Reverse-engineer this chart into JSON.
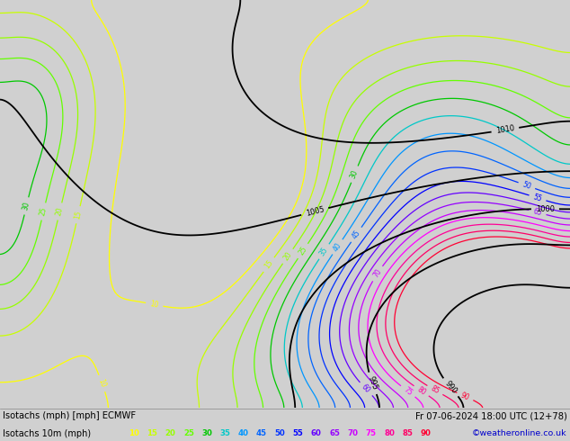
{
  "title_left": "Isotachs (mph) [mph] ECMWF",
  "title_right": "Fr 07-06-2024 18:00 UTC (12+78)",
  "subtitle_left": "Isotachs 10m (mph)",
  "subtitle_right": "©weatheronline.co.uk",
  "legend_values": [
    10,
    15,
    20,
    25,
    30,
    35,
    40,
    45,
    50,
    55,
    60,
    65,
    70,
    75,
    80,
    85,
    90
  ],
  "legend_colors": [
    "#ffff00",
    "#c8ff00",
    "#96ff00",
    "#64ff00",
    "#00c800",
    "#00c8c8",
    "#0096ff",
    "#0064ff",
    "#0032ff",
    "#0000ff",
    "#6400ff",
    "#9600ff",
    "#c800ff",
    "#ff00ff",
    "#ff0096",
    "#ff0064",
    "#ff0032"
  ],
  "iso_colors": {
    "10": "#ffff00",
    "15": "#c8ff00",
    "20": "#96ff00",
    "25": "#64ff00",
    "30": "#00c800",
    "35": "#00c8c8",
    "40": "#0096ff",
    "45": "#0064ff",
    "50": "#0032ff",
    "55": "#0000ff",
    "60": "#6400ff",
    "65": "#9600ff",
    "70": "#c800ff",
    "75": "#ff00ff",
    "80": "#ff0096",
    "85": "#ff0064",
    "90": "#ff0032"
  },
  "bg_color": "#d0d0d0",
  "map_bg": "#e0e0e0",
  "land_color": "#c8e6a0",
  "bottom_bar_color": "#c0c0c0",
  "fig_width": 6.34,
  "fig_height": 4.9,
  "dpi": 100,
  "lon_min": 155.0,
  "lon_max": 195.0,
  "lat_min": -55.0,
  "lat_max": -25.0
}
